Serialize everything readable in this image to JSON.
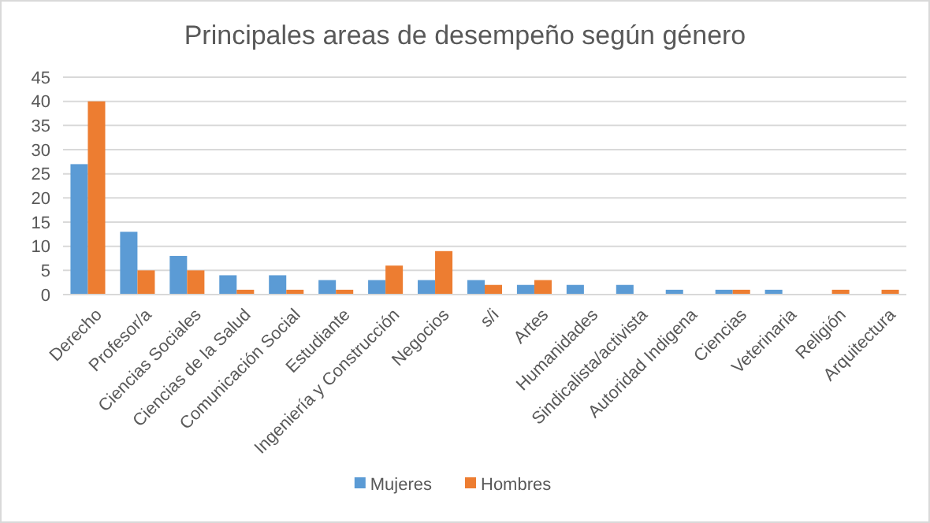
{
  "chart_data": {
    "type": "bar",
    "title": "Principales areas de desempeño según género",
    "categories": [
      "Derecho",
      "Profesor/a",
      "Ciencias Sociales",
      "Ciencias de la Salud",
      "Comunicación Social",
      "Estudiante",
      "Ingeniería y Construcción",
      "Negocios",
      "s/i",
      "Artes",
      "Humanidades",
      "Sindicalista/activista",
      "Autoridad Indigena",
      "Ciencias",
      "Veterinaria",
      "Religión",
      "Arquitectura"
    ],
    "series": [
      {
        "name": "Mujeres",
        "color": "#5b9bd5",
        "values": [
          27,
          13,
          8,
          4,
          4,
          3,
          3,
          3,
          3,
          2,
          2,
          2,
          1,
          1,
          1,
          0,
          0
        ]
      },
      {
        "name": "Hombres",
        "color": "#ed7d31",
        "values": [
          40,
          5,
          5,
          1,
          1,
          1,
          6,
          9,
          2,
          3,
          0,
          0,
          0,
          1,
          0,
          1,
          1
        ]
      }
    ],
    "ylim": [
      0,
      45
    ],
    "yticks": [
      0,
      5,
      10,
      15,
      20,
      25,
      30,
      35,
      40,
      45
    ],
    "grid": "y",
    "legend": "bottom"
  }
}
